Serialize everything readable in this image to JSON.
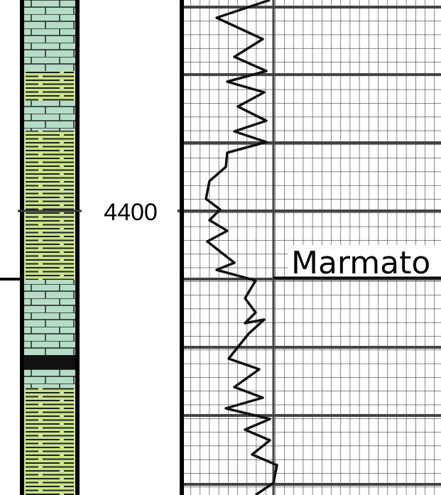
{
  "depth_label": "4400",
  "formation_label": "Marmato"
}
